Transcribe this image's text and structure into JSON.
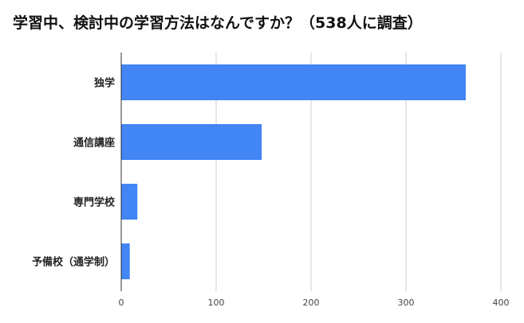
{
  "chart_data": {
    "type": "bar",
    "orientation": "horizontal",
    "title": "学習中、検討中の学習方法はなんですか？（538人に調査）",
    "categories": [
      "独学",
      "通信講座",
      "専門学校",
      "予備校（通学制）"
    ],
    "values": [
      363,
      148,
      17,
      9
    ],
    "xlim": [
      0,
      400
    ],
    "xticks": [
      0,
      100,
      200,
      300,
      400
    ],
    "xlabel": "",
    "ylabel": "",
    "grid": "vertical",
    "legend": "none",
    "bar_color": "#4285F4",
    "grid_color": "#CCCCCC",
    "axis_color": "#333333"
  }
}
